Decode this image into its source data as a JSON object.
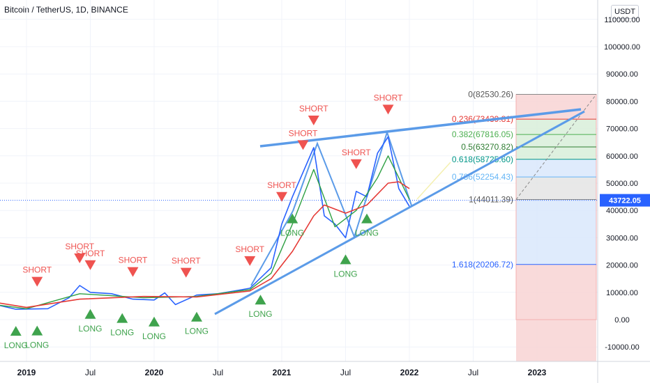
{
  "header": {
    "symbol_title": "Bitcoin / TetherUS, 1D, BINANCE",
    "currency_button": "USDT"
  },
  "colors": {
    "price_line": "#2962ff",
    "ema_fast": "#2ea043",
    "ema_slow": "#e53935",
    "trendline": "#5b9be8",
    "short_marker": "#ef5350",
    "long_marker": "#3fa34d",
    "fib_text": "#4a4a4a",
    "current_price_label": "#2962ff",
    "fib_band_red": "#f8d4d4",
    "fib_band_green": "#d8efd9",
    "fib_band_blue": "#d9e7fb",
    "fib_band_gray": "#e4e4e4"
  },
  "chart_data": {
    "type": "line",
    "title": "Bitcoin / TetherUS, 1D, BINANCE",
    "ylim": [
      -15000,
      115000
    ],
    "y_ticks": [
      "110000.00",
      "100000.00",
      "90000.00",
      "80000.00",
      "70000.00",
      "60000.00",
      "50000.00",
      "40000.00",
      "30000.00",
      "20000.00",
      "10000.00",
      "0.00",
      "-10000.00"
    ],
    "x_ticks": [
      "2019",
      "Jul",
      "2020",
      "Jul",
      "2021",
      "Jul",
      "2022",
      "Jul",
      "2023"
    ],
    "current_price": "43722.05",
    "series": [
      {
        "x": [
          "2018-09",
          "2018-12",
          "2019-03",
          "2019-05",
          "2019-06",
          "2019-07",
          "2019-09",
          "2019-11",
          "2020-01",
          "2020-02",
          "2020-03",
          "2020-05",
          "2020-07",
          "2020-09",
          "2020-10",
          "2020-12",
          "2021-01",
          "2021-02",
          "2021-04",
          "2021-05",
          "2021-06",
          "2021-07",
          "2021-08",
          "2021-09",
          "2021-10",
          "2021-11",
          "2021-12",
          "2022-01"
        ],
        "y": [
          6500,
          3800,
          4000,
          8000,
          12500,
          10000,
          9500,
          7500,
          7200,
          9800,
          5500,
          9000,
          9500,
          10800,
          11500,
          19000,
          35000,
          45000,
          63000,
          38000,
          35000,
          30000,
          47000,
          45000,
          61000,
          67000,
          48000,
          41500
        ]
      },
      {
        "x": [
          "2018-09",
          "2019-01",
          "2019-06",
          "2019-12",
          "2020-05",
          "2020-10",
          "2020-12",
          "2021-02",
          "2021-04",
          "2021-06",
          "2021-08",
          "2021-10",
          "2021-11",
          "2021-12",
          "2022-01"
        ],
        "y": [
          6000,
          4000,
          9500,
          8000,
          8500,
          11000,
          17000,
          35000,
          55000,
          34000,
          40000,
          52000,
          60000,
          52000,
          44000
        ]
      },
      {
        "x": [
          "2018-09",
          "2019-01",
          "2019-06",
          "2019-12",
          "2020-05",
          "2020-10",
          "2020-12",
          "2021-02",
          "2021-04",
          "2021-05",
          "2021-07",
          "2021-09",
          "2021-11",
          "2021-12",
          "2022-01"
        ],
        "y": [
          7000,
          4500,
          7500,
          8500,
          8300,
          10500,
          15000,
          25000,
          38000,
          42000,
          39000,
          42000,
          50000,
          50500,
          48000
        ]
      }
    ],
    "signals": [
      {
        "type": "SHORT",
        "date": "2019-02"
      },
      {
        "type": "LONG",
        "date": "2018-12"
      },
      {
        "type": "LONG",
        "date": "2019-02"
      },
      {
        "type": "SHORT",
        "date": "2019-06"
      },
      {
        "type": "SHORT",
        "date": "2019-07"
      },
      {
        "type": "LONG",
        "date": "2019-07"
      },
      {
        "type": "SHORT",
        "date": "2019-11"
      },
      {
        "type": "LONG",
        "date": "2019-10"
      },
      {
        "type": "LONG",
        "date": "2020-01"
      },
      {
        "type": "SHORT",
        "date": "2020-04"
      },
      {
        "type": "LONG",
        "date": "2020-05"
      },
      {
        "type": "SHORT",
        "date": "2020-10"
      },
      {
        "type": "LONG",
        "date": "2020-11"
      },
      {
        "type": "SHORT",
        "date": "2021-01"
      },
      {
        "type": "LONG",
        "date": "2021-02"
      },
      {
        "type": "SHORT",
        "date": "2021-03"
      },
      {
        "type": "SHORT",
        "date": "2021-04"
      },
      {
        "type": "LONG",
        "date": "2021-07"
      },
      {
        "type": "SHORT",
        "date": "2021-08"
      },
      {
        "type": "LONG",
        "date": "2021-09"
      },
      {
        "type": "SHORT",
        "date": "2021-11"
      }
    ],
    "fib_levels": [
      {
        "label": "0(82530.26)",
        "value": 82530.26
      },
      {
        "label": "0.236(73439.81)",
        "value": 73439.81
      },
      {
        "label": "0.382(67816.05)",
        "value": 67816.05
      },
      {
        "label": "0.5(63270.82)",
        "value": 63270.82
      },
      {
        "label": "0.618(58725.60)",
        "value": 58725.6
      },
      {
        "label": "0.786(52254.43)",
        "value": 52254.43
      },
      {
        "label": "1(44011.39)",
        "value": 44011.39
      },
      {
        "label": "1.618(20206.72)",
        "value": 20206.72
      }
    ]
  }
}
